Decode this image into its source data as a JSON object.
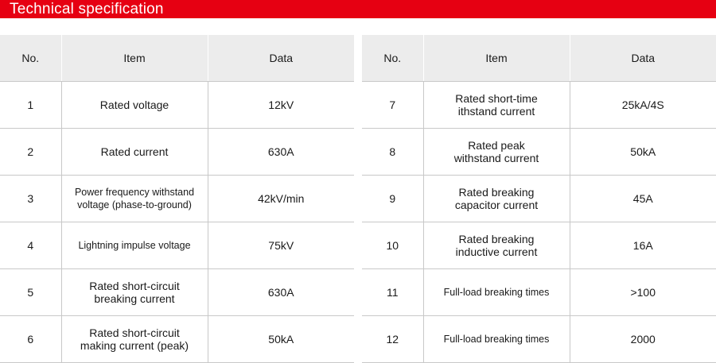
{
  "title": "Technical specification",
  "headers": {
    "no": "No.",
    "item": "Item",
    "data": "Data"
  },
  "left_rows": [
    {
      "no": "1",
      "item_lines": [
        "Rated voltage"
      ],
      "data": "12kV"
    },
    {
      "no": "2",
      "item_lines": [
        "Rated current"
      ],
      "data": "630A"
    },
    {
      "no": "3",
      "item_lines": [
        "Power frequency withstand",
        "voltage (phase-to-ground)"
      ],
      "data": "42kV/min"
    },
    {
      "no": "4",
      "item_lines": [
        "Lightning impulse voltage"
      ],
      "data": "75kV"
    },
    {
      "no": "5",
      "item_lines": [
        "Rated short-circuit",
        "breaking current"
      ],
      "data": "630A"
    },
    {
      "no": "6",
      "item_lines": [
        "Rated short-circuit",
        "making current (peak)"
      ],
      "data": "50kA"
    }
  ],
  "right_rows": [
    {
      "no": "7",
      "item_lines": [
        "Rated short-time",
        "ithstand current"
      ],
      "data": "25kA/4S"
    },
    {
      "no": "8",
      "item_lines": [
        "Rated peak",
        "withstand current"
      ],
      "data": "50kA"
    },
    {
      "no": "9",
      "item_lines": [
        "Rated breaking",
        "capacitor current"
      ],
      "data": "45A"
    },
    {
      "no": "10",
      "item_lines": [
        "Rated breaking",
        "inductive current"
      ],
      "data": "16A"
    },
    {
      "no": "11",
      "item_lines": [
        "Full-load breaking times"
      ],
      "data": ">100"
    },
    {
      "no": "12",
      "item_lines": [
        "Full-load breaking times"
      ],
      "data": "2000"
    }
  ]
}
